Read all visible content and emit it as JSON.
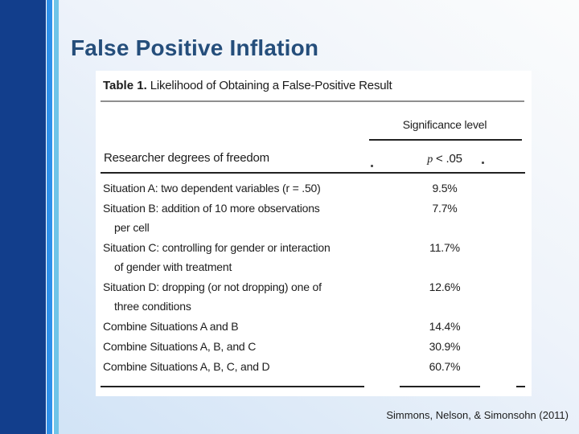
{
  "slide": {
    "title": "False Positive Inflation",
    "citation": "Simmons, Nelson, & Simonsohn (2011)"
  },
  "figure": {
    "caption_label": "Table 1.",
    "caption_text": "Likelihood of Obtaining a False-Positive Result",
    "column_group_header": "Significance level",
    "stub_header": "Researcher degrees of freedom",
    "column_header_italic": "p",
    "column_header_rest": " < .05",
    "rows": [
      {
        "lines": [
          "Situation A: two dependent variables (r = .50)"
        ],
        "value": "9.5%"
      },
      {
        "lines": [
          "Situation B: addition of 10 more observations",
          "per cell"
        ],
        "value": "7.7%"
      },
      {
        "lines": [
          "Situation C: controlling for gender or interaction",
          "of gender with treatment"
        ],
        "value": "11.7%"
      },
      {
        "lines": [
          "Situation D: dropping (or not dropping) one of",
          "three conditions"
        ],
        "value": "12.6%"
      },
      {
        "lines": [
          "Combine Situations A and B"
        ],
        "value": "14.4%"
      },
      {
        "lines": [
          "Combine Situations A, B, and C"
        ],
        "value": "30.9%"
      },
      {
        "lines": [
          "Combine Situations A, B, C, and D"
        ],
        "value": "60.7%"
      }
    ]
  },
  "chart_data": {
    "type": "table",
    "title": "Table 1. Likelihood of Obtaining a False-Positive Result",
    "column_group": "Significance level",
    "columns": [
      "Researcher degrees of freedom",
      "p < .05"
    ],
    "rows": [
      [
        "Situation A: two dependent variables (r = .50)",
        "9.5%"
      ],
      [
        "Situation B: addition of 10 more observations per cell",
        "7.7%"
      ],
      [
        "Situation C: controlling for gender or interaction of gender with treatment",
        "11.7%"
      ],
      [
        "Situation D: dropping (or not dropping) one of three conditions",
        "12.6%"
      ],
      [
        "Combine Situations A and B",
        "14.4%"
      ],
      [
        "Combine Situations A, B, and C",
        "30.9%"
      ],
      [
        "Combine Situations A, B, C, and D",
        "60.7%"
      ]
    ]
  },
  "colors": {
    "sidebar_dark_blue": "#123e8c",
    "stripe_bright_blue": "#2f90ea",
    "stripe_sky_blue": "#6fc4e8",
    "title_navy": "#254e7b",
    "background_top": "#fbfcfc",
    "background_bottom_left": "#cfe2f6",
    "figure_background": "#ffffff",
    "figure_text": "#1c1c1c"
  }
}
